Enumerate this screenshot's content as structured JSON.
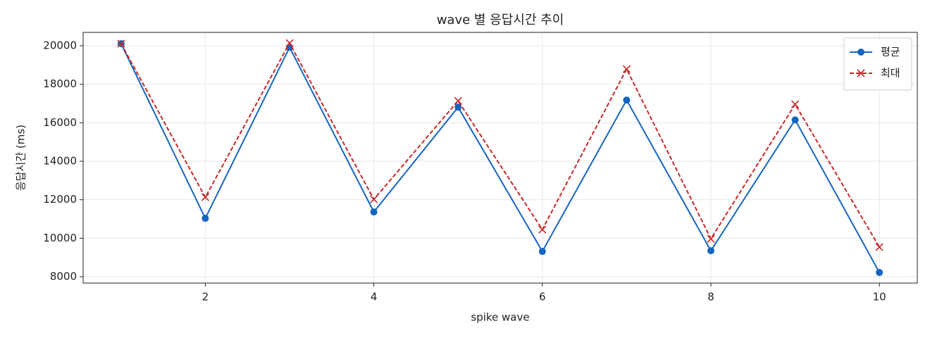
{
  "chart_data": {
    "type": "line",
    "title": "wave 별 응답시간 추이",
    "xlabel": "spike wave",
    "ylabel": "응답시간 (ms)",
    "x": [
      1,
      2,
      3,
      4,
      5,
      6,
      7,
      8,
      9,
      10
    ],
    "series": [
      {
        "name": "평균",
        "color": "#1565c0",
        "marker": "circle",
        "dash": "solid",
        "values": [
          20110,
          11035,
          19920,
          11365,
          16810,
          9315,
          17180,
          9350,
          16150,
          8220
        ]
      },
      {
        "name": "최대",
        "color": "#c62828",
        "marker": "x",
        "dash": "dashed",
        "values": [
          20110,
          12130,
          20140,
          12020,
          17140,
          10450,
          18790,
          9970,
          16960,
          9540
        ]
      }
    ],
    "xlim": [
      0.55,
      10.45
    ],
    "ylim": [
      7670,
      20695
    ],
    "xticks": [
      2,
      4,
      6,
      8,
      10
    ],
    "yticks": [
      8000,
      10000,
      12000,
      14000,
      16000,
      18000,
      20000
    ],
    "grid": true,
    "legend": "upper-right"
  }
}
